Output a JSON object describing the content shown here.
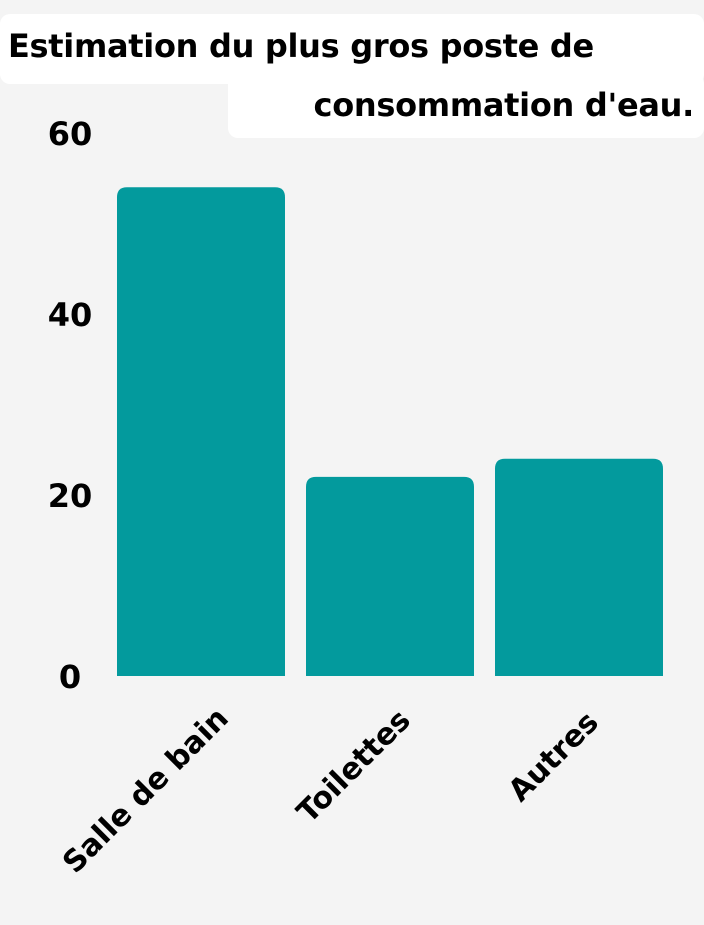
{
  "chart_data": {
    "type": "bar",
    "title_lines": [
      "Estimation du plus gros poste de",
      "consommation d'eau."
    ],
    "categories": [
      "Salle de bain",
      "Toilettes",
      "Autres"
    ],
    "values": [
      54,
      22,
      24
    ],
    "ylim": [
      0,
      60
    ],
    "yticks": [
      "0",
      "20",
      "40",
      "60"
    ],
    "xlabel": "",
    "ylabel": "",
    "grid": false,
    "bar_color": "#039a9d"
  }
}
